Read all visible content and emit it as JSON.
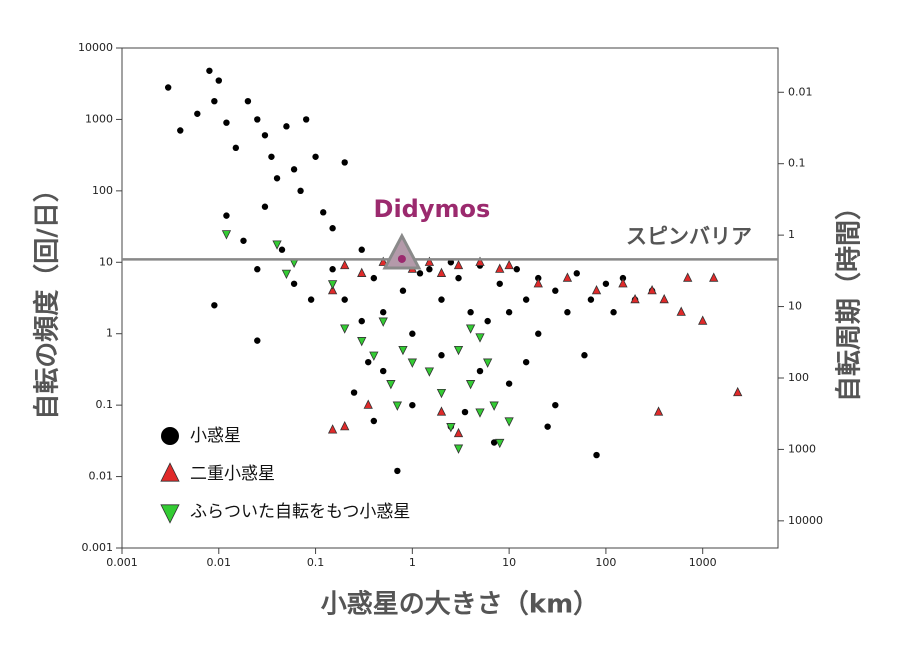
{
  "chart_data": {
    "type": "scatter",
    "x_label": "小惑星の大きさ（km）",
    "y_label": "自転の頻度（回/日）",
    "y2_label": "自転周期（時間）",
    "log_x": true,
    "log_y": true,
    "xlim": [
      0.001,
      6000
    ],
    "ylim": [
      0.001,
      10000
    ],
    "y2lim": [
      24000,
      0.0024
    ],
    "xticks": [
      0.001,
      0.01,
      0.1,
      1,
      10,
      100,
      1000
    ],
    "yticks": [
      0.001,
      0.01,
      0.1,
      1,
      10,
      100,
      1000,
      10000
    ],
    "y2ticks": [
      0.01,
      0.1,
      1,
      10,
      100,
      1000,
      10000
    ],
    "series": [
      {
        "name": "小惑星",
        "color": "#000000",
        "marker": "circle",
        "x": [
          0.003,
          0.004,
          0.006,
          0.008,
          0.009,
          0.01,
          0.012,
          0.015,
          0.02,
          0.025,
          0.03,
          0.035,
          0.04,
          0.05,
          0.06,
          0.07,
          0.08,
          0.1,
          0.12,
          0.15,
          0.2,
          0.012,
          0.018,
          0.025,
          0.03,
          0.045,
          0.06,
          0.09,
          0.009,
          0.025,
          0.15,
          0.2,
          0.3,
          0.3,
          0.4,
          0.5,
          0.5,
          0.6,
          0.8,
          1,
          1,
          1.5,
          2,
          2,
          2.5,
          3,
          4,
          5,
          5,
          6,
          7,
          8,
          10,
          10,
          12,
          15,
          20,
          20,
          30,
          30,
          40,
          50,
          60,
          70,
          80,
          100,
          120,
          150,
          200,
          0.7,
          1.2,
          2.5,
          0.35,
          3.5,
          15,
          25,
          300,
          0.25,
          0.4
        ],
        "values": [
          2800,
          700,
          1200,
          4800,
          1800,
          3500,
          900,
          400,
          1800,
          1000,
          600,
          300,
          150,
          800,
          200,
          100,
          1000,
          300,
          50,
          30,
          250,
          45,
          20,
          8,
          60,
          15,
          5,
          3,
          2.5,
          0.8,
          8,
          3,
          1.5,
          15,
          6,
          2,
          0.3,
          10,
          4,
          1,
          0.1,
          8,
          3,
          0.5,
          0.05,
          6,
          2,
          9,
          0.3,
          1.5,
          0.03,
          5,
          2,
          0.2,
          8,
          3,
          1,
          6,
          4,
          0.1,
          2,
          7,
          0.5,
          3,
          0.02,
          5,
          2,
          6,
          3,
          0.012,
          7,
          10,
          0.4,
          0.08,
          0.4,
          0.05,
          4,
          0.15,
          0.06
        ]
      },
      {
        "name": "二重小惑星",
        "color": "#e02a2a",
        "marker": "triangle-up",
        "x": [
          0.15,
          0.2,
          0.3,
          0.5,
          0.7,
          1,
          1.5,
          2,
          3,
          5,
          8,
          10,
          2,
          3,
          0.2,
          0.15,
          20,
          40,
          80,
          150,
          200,
          300,
          400,
          700,
          1000,
          1300,
          2300,
          350,
          600,
          0.35
        ],
        "values": [
          4,
          9,
          7,
          10,
          9,
          8,
          10,
          7,
          9,
          10,
          8,
          9,
          0.08,
          0.04,
          0.05,
          0.045,
          5,
          6,
          4,
          5,
          3,
          4,
          3,
          6,
          1.5,
          6,
          0.15,
          0.08,
          2,
          0.1
        ]
      },
      {
        "name": "ふらついた自転をもつ小惑星",
        "color": "#33cc33",
        "marker": "triangle-down",
        "x": [
          0.012,
          0.04,
          0.05,
          0.06,
          0.15,
          0.2,
          0.3,
          0.4,
          0.5,
          0.6,
          0.8,
          1,
          1.5,
          2,
          2.5,
          3,
          4,
          5,
          6,
          7,
          8,
          10,
          3,
          0.7,
          5,
          4
        ],
        "values": [
          25,
          18,
          7,
          10,
          5,
          1.2,
          0.8,
          0.5,
          1.5,
          0.2,
          0.6,
          0.4,
          0.3,
          0.15,
          0.05,
          0.6,
          0.2,
          0.08,
          0.4,
          0.1,
          0.03,
          0.06,
          0.025,
          0.1,
          0.9,
          1.2
        ]
      }
    ],
    "reference_line": {
      "value": 11,
      "label": "スピンバリア",
      "color": "#888888"
    },
    "highlight": {
      "label": "Didymos",
      "x": 0.78,
      "value": 11.5,
      "color": "#9b2a6e"
    }
  }
}
